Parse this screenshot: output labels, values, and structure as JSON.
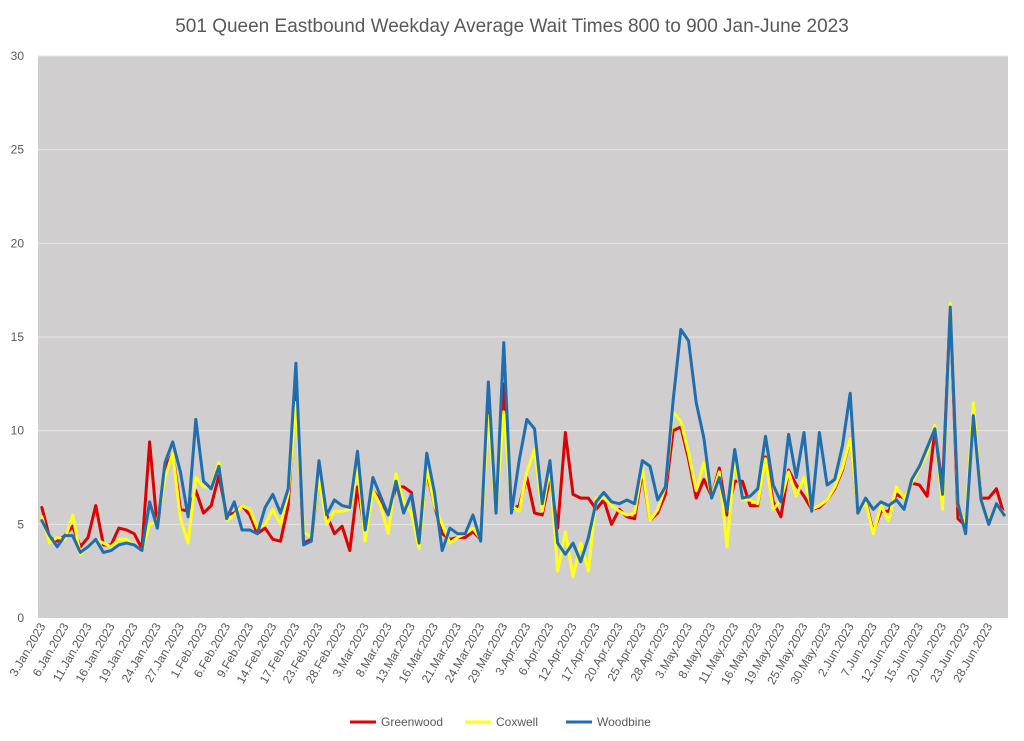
{
  "chart_data": {
    "type": "line",
    "title": "501 Queen Eastbound Weekday Average Wait Times 800 to 900 Jan-June 2023",
    "xlabel": "",
    "ylabel": "",
    "ylim": [
      0,
      30
    ],
    "yticks": [
      0,
      5,
      10,
      15,
      20,
      25,
      30
    ],
    "grid": true,
    "legend_position": "bottom",
    "plot_background": "#d0cece",
    "x_tick_labels": [
      "3.Jan.2023",
      "6.Jan.2023",
      "11.Jan.2023",
      "16.Jan.2023",
      "19.Jan.2023",
      "24.Jan.2023",
      "27.Jan.2023",
      "1.Feb.2023",
      "6.Feb.2023",
      "9.Feb.2023",
      "14.Feb.2023",
      "17.Feb.2023",
      "23.Feb.2023",
      "28.Feb.2023",
      "3.Mar.2023",
      "8.Mar.2023",
      "13.Mar.2023",
      "16.Mar.2023",
      "21.Mar.2023",
      "24.Mar.2023",
      "29.Mar.2023",
      "3.Apr.2023",
      "6.Apr.2023",
      "12.Apr.2023",
      "17.Apr.2023",
      "20.Apr.2023",
      "25.Apr.2023",
      "28.Apr.2023",
      "3.May.2023",
      "8.May.2023",
      "11.May.2023",
      "16.May.2023",
      "19.May.2023",
      "25.May.2023",
      "30.May.2023",
      "2.Jun.2023",
      "7.Jun.2023",
      "12.Jun.2023",
      "15.Jun.2023",
      "20.Jun.2023",
      "23.Jun.2023",
      "28.Jun.2023"
    ],
    "x_tick_every": 3,
    "series": [
      {
        "name": "Greenwood",
        "color": "#e00000",
        "values": [
          5.9,
          4.3,
          4.1,
          4.4,
          4.9,
          3.8,
          4.3,
          6.0,
          3.9,
          3.9,
          4.8,
          4.7,
          4.5,
          3.7,
          9.4,
          4.8,
          8.0,
          8.8,
          5.8,
          5.7,
          6.8,
          5.6,
          6.0,
          7.6,
          5.5,
          5.6,
          6.0,
          5.5,
          4.5,
          4.8,
          4.2,
          4.1,
          6.0,
          12.5,
          4.0,
          4.2,
          7.5,
          5.5,
          4.5,
          4.9,
          3.6,
          7.0,
          4.5,
          6.8,
          6.3,
          5.5,
          7.0,
          7.0,
          6.7,
          4.1,
          7.8,
          6.0,
          4.5,
          4.2,
          4.3,
          4.3,
          4.6,
          4.2,
          11.7,
          5.6,
          12.5,
          5.8,
          6.0,
          7.5,
          5.6,
          5.5,
          7.5,
          4.8,
          9.9,
          6.6,
          6.4,
          6.4,
          5.8,
          6.3,
          5.0,
          5.8,
          5.4,
          5.3,
          7.8,
          5.2,
          5.6,
          6.6,
          10.0,
          10.2,
          8.5,
          6.4,
          7.4,
          6.5,
          8.0,
          5.5,
          7.3,
          7.3,
          6.0,
          6.0,
          8.6,
          6.2,
          5.4,
          7.9,
          7.1,
          6.5,
          5.8,
          5.9,
          6.3,
          6.9,
          7.9,
          9.6,
          5.6,
          6.3,
          4.6,
          5.7,
          5.7,
          6.6,
          6.4,
          7.2,
          7.1,
          6.5,
          10.0,
          7.0,
          16.6,
          5.3,
          4.9,
          11.0,
          6.4,
          6.4,
          6.9,
          5.5
        ]
      },
      {
        "name": "Coxwell",
        "color": "#ffff1a",
        "values": [
          5.4,
          4.0,
          4.3,
          4.2,
          5.5,
          3.4,
          3.8,
          4.2,
          4.0,
          3.8,
          4.2,
          4.2,
          3.9,
          3.6,
          5.0,
          5.1,
          7.5,
          8.8,
          5.3,
          4.0,
          7.5,
          7.0,
          7.0,
          8.3,
          5.2,
          5.5,
          6.0,
          5.8,
          4.8,
          5.0,
          5.8,
          5.0,
          6.6,
          11.5,
          4.6,
          4.3,
          7.5,
          5.0,
          5.7,
          5.7,
          5.8,
          8.0,
          4.1,
          6.8,
          6.0,
          4.5,
          7.7,
          6.2,
          5.6,
          3.7,
          8.0,
          6.0,
          5.0,
          4.0,
          4.3,
          4.5,
          4.8,
          4.2,
          10.8,
          5.6,
          11.0,
          6.0,
          5.7,
          7.8,
          9.0,
          5.7,
          8.0,
          2.5,
          4.6,
          2.2,
          4.0,
          2.5,
          6.4,
          6.4,
          6.0,
          5.7,
          5.5,
          5.6,
          8.0,
          5.2,
          5.8,
          7.0,
          11.0,
          10.5,
          8.8,
          6.8,
          8.3,
          6.5,
          7.8,
          3.8,
          8.5,
          6.3,
          6.3,
          6.1,
          8.5,
          5.8,
          6.3,
          7.8,
          6.5,
          7.5,
          5.8,
          6.0,
          6.3,
          7.0,
          8.0,
          9.6,
          5.6,
          6.2,
          4.5,
          6.0,
          5.2,
          7.0,
          6.4,
          7.2,
          8.0,
          8.8,
          10.3,
          5.8,
          16.8,
          6.0,
          5.0,
          11.5,
          6.3,
          5.1,
          6.0,
          5.6
        ]
      },
      {
        "name": "Woodbine",
        "color": "#1f6eb0",
        "values": [
          5.2,
          4.4,
          3.8,
          4.4,
          4.4,
          3.5,
          3.8,
          4.2,
          3.5,
          3.6,
          3.9,
          4.0,
          3.9,
          3.6,
          6.2,
          4.8,
          8.3,
          9.4,
          7.8,
          5.4,
          10.6,
          7.3,
          6.9,
          8.1,
          5.3,
          6.2,
          4.7,
          4.7,
          4.5,
          5.9,
          6.6,
          5.6,
          6.9,
          13.6,
          3.9,
          4.1,
          8.4,
          5.5,
          6.3,
          6.0,
          5.9,
          8.9,
          4.7,
          7.5,
          6.5,
          5.5,
          7.3,
          5.6,
          6.6,
          4.0,
          8.8,
          6.7,
          3.6,
          4.8,
          4.5,
          4.5,
          5.5,
          4.1,
          12.6,
          5.6,
          14.7,
          5.6,
          8.4,
          10.6,
          10.1,
          6.1,
          8.4,
          4.0,
          3.4,
          4.0,
          3.0,
          4.3,
          6.2,
          6.7,
          6.2,
          6.1,
          6.3,
          6.1,
          8.4,
          8.1,
          6.3,
          7.0,
          11.6,
          15.4,
          14.8,
          11.5,
          9.6,
          6.4,
          7.5,
          5.7,
          9.0,
          6.4,
          6.5,
          6.9,
          9.7,
          7.1,
          6.2,
          9.8,
          7.5,
          9.9,
          5.7,
          9.9,
          7.1,
          7.4,
          9.2,
          12.0,
          5.6,
          6.4,
          5.8,
          6.2,
          6.0,
          6.3,
          5.8,
          7.4,
          8.1,
          9.1,
          10.1,
          6.6,
          16.6,
          6.1,
          4.5,
          10.8,
          6.3,
          5.0,
          6.1,
          5.5
        ]
      }
    ]
  }
}
